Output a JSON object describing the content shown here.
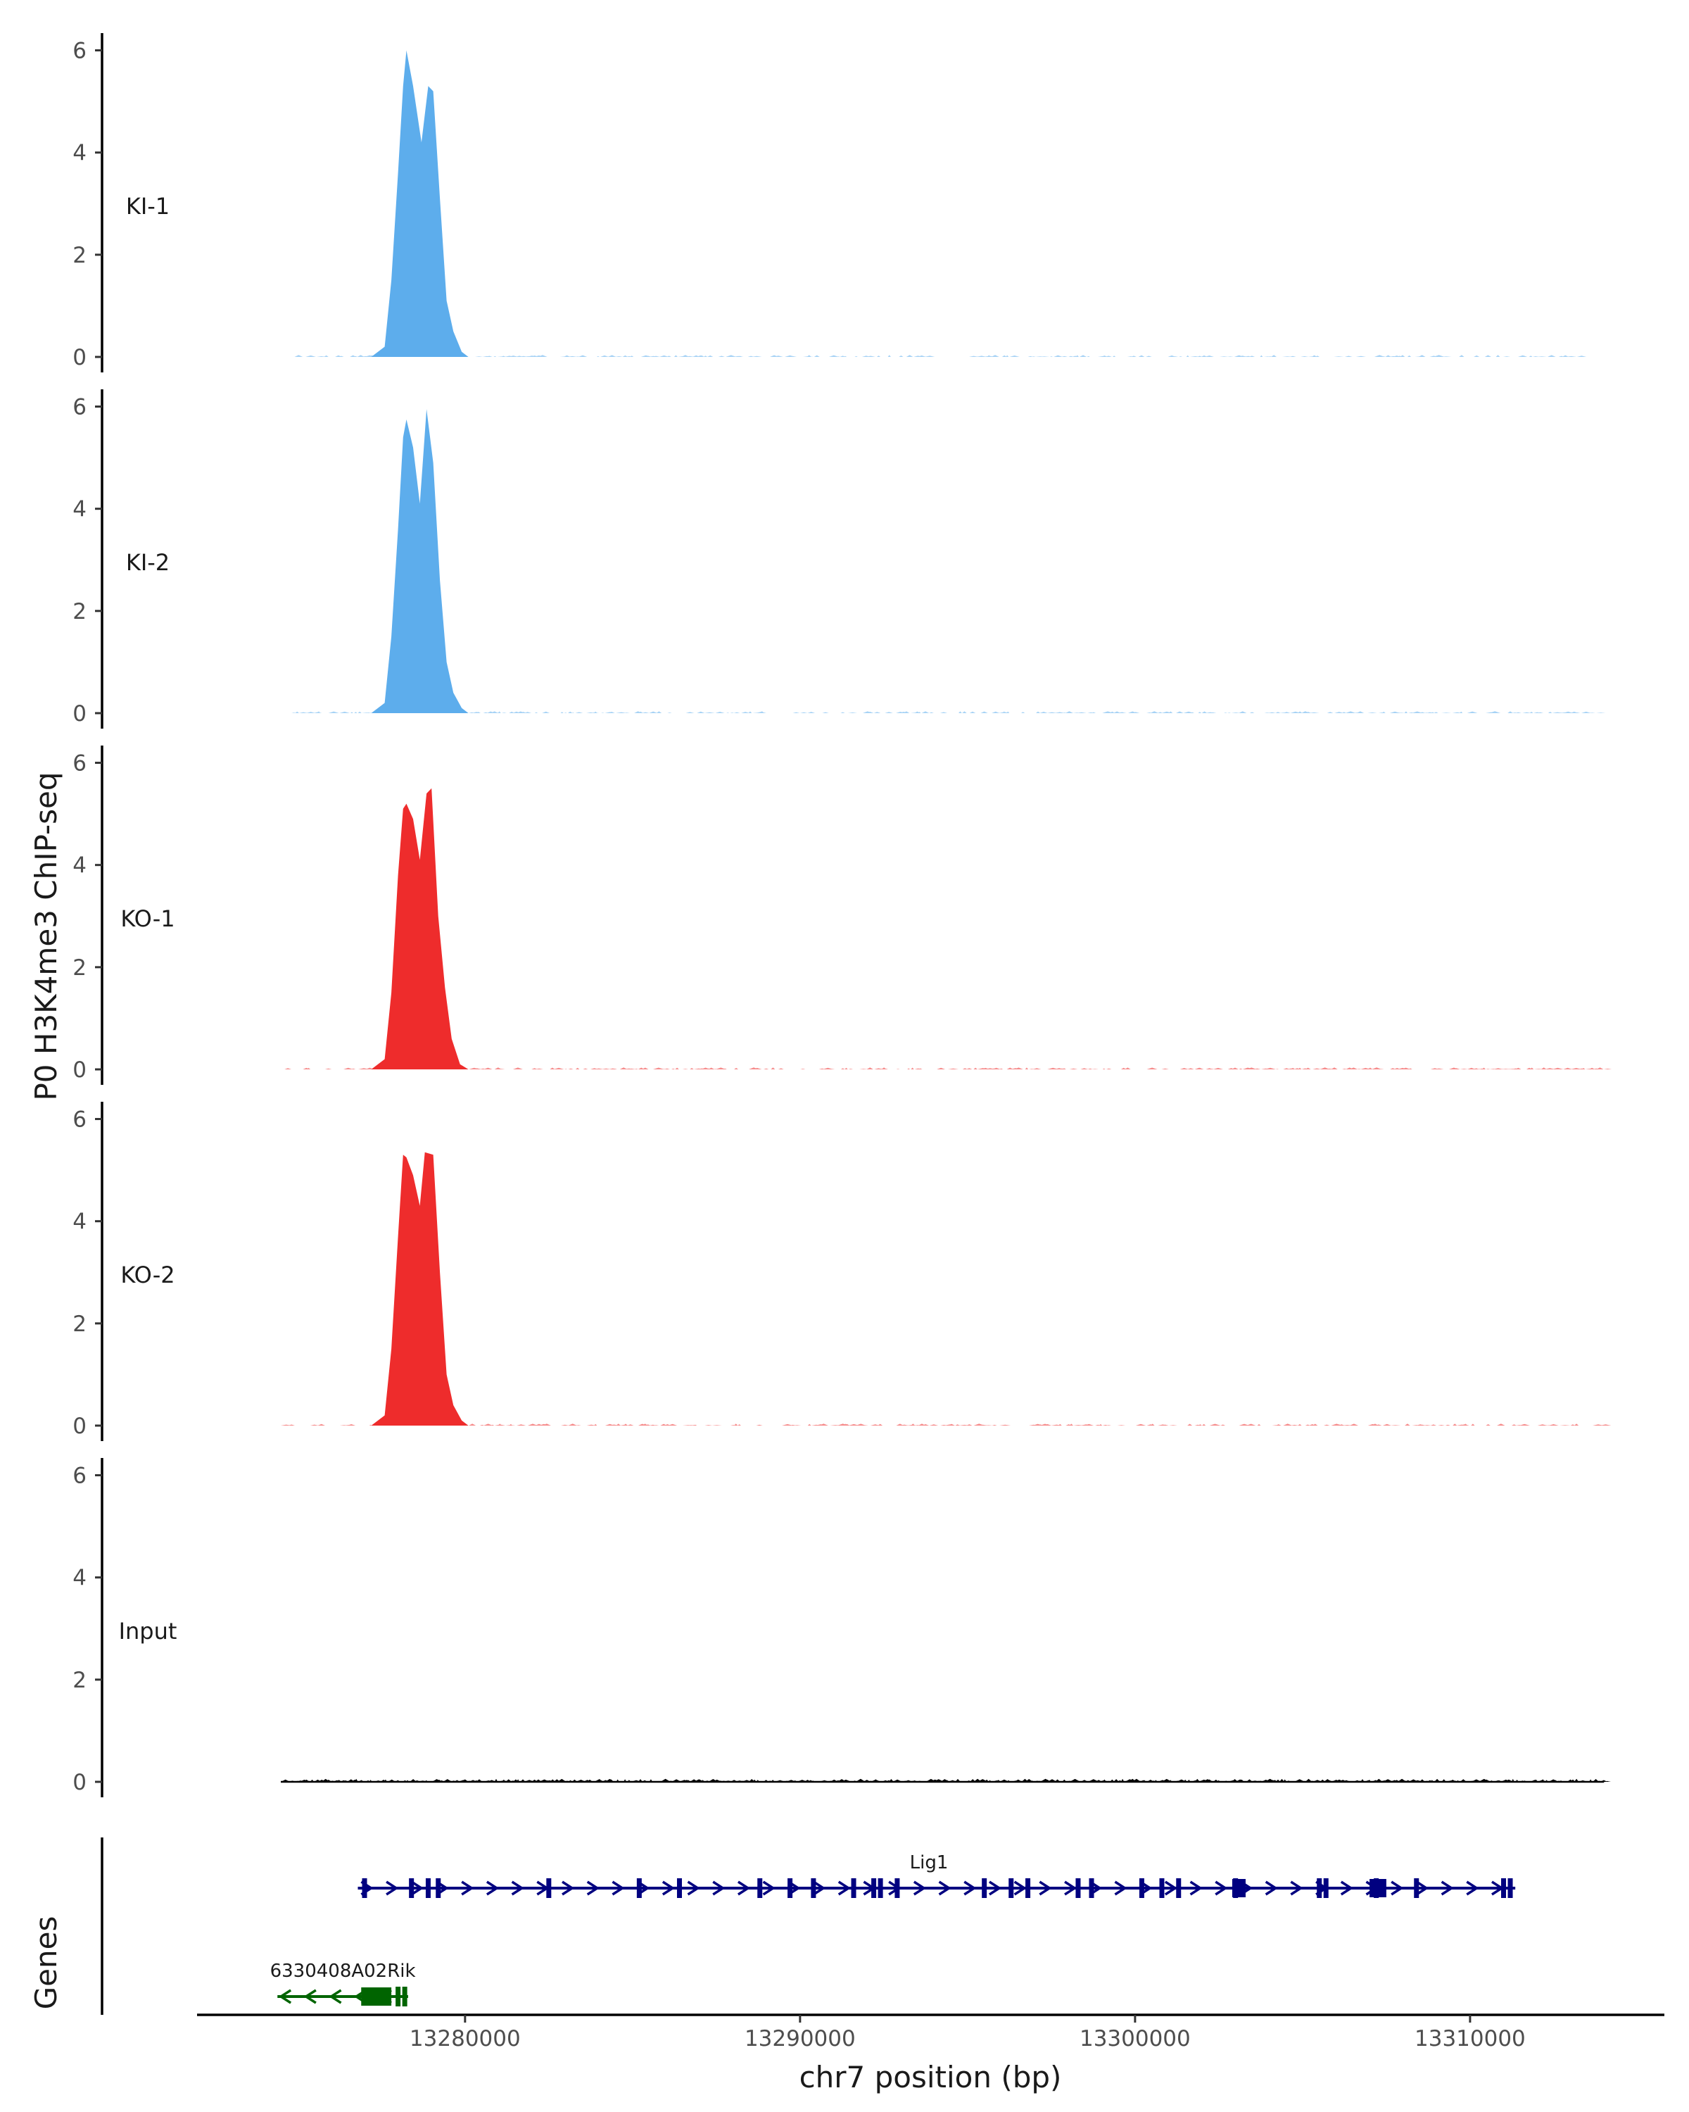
{
  "chart_data": {
    "type": "area",
    "ylabel": "P0 H3K4me3 ChIP-seq",
    "xlabel": "chr7 position (bp)",
    "ylim": [
      0,
      6.2
    ],
    "y_ticks": [
      "0",
      "2",
      "4",
      "6"
    ],
    "xlim": [
      13272000,
      13315800
    ],
    "x_ticks": [
      {
        "value": 13280000,
        "label": "13280000"
      },
      {
        "value": 13290000,
        "label": "13290000"
      },
      {
        "value": 13300000,
        "label": "13300000"
      },
      {
        "value": 13310000,
        "label": "13310000"
      }
    ],
    "tracks": [
      {
        "name": "KI-1",
        "color": "#5dadec",
        "baseline_range": [
          13274800,
          13313200
        ],
        "points": [
          [
            13277200,
            0
          ],
          [
            13277600,
            0.2
          ],
          [
            13277800,
            1.5
          ],
          [
            13278000,
            3.6
          ],
          [
            13278150,
            5.3
          ],
          [
            13278250,
            6.0
          ],
          [
            13278450,
            5.3
          ],
          [
            13278700,
            4.2
          ],
          [
            13278900,
            5.3
          ],
          [
            13279050,
            5.2
          ],
          [
            13279250,
            3.1
          ],
          [
            13279450,
            1.1
          ],
          [
            13279650,
            0.5
          ],
          [
            13279900,
            0.1
          ],
          [
            13280100,
            0
          ]
        ]
      },
      {
        "name": "KI-2",
        "color": "#5dadec",
        "baseline_range": [
          13274600,
          13314000
        ],
        "points": [
          [
            13277200,
            0
          ],
          [
            13277600,
            0.2
          ],
          [
            13277800,
            1.5
          ],
          [
            13278000,
            3.6
          ],
          [
            13278150,
            5.4
          ],
          [
            13278250,
            5.75
          ],
          [
            13278450,
            5.2
          ],
          [
            13278650,
            4.1
          ],
          [
            13278850,
            5.95
          ],
          [
            13279050,
            4.9
          ],
          [
            13279250,
            2.6
          ],
          [
            13279450,
            1.0
          ],
          [
            13279650,
            0.4
          ],
          [
            13279900,
            0.1
          ],
          [
            13280100,
            0
          ]
        ]
      },
      {
        "name": "KO-1",
        "color": "#ee2c2c",
        "baseline_range": [
          13274500,
          13314000
        ],
        "points": [
          [
            13277200,
            0
          ],
          [
            13277600,
            0.2
          ],
          [
            13277800,
            1.5
          ],
          [
            13278000,
            3.8
          ],
          [
            13278150,
            5.1
          ],
          [
            13278250,
            5.2
          ],
          [
            13278450,
            4.9
          ],
          [
            13278650,
            4.1
          ],
          [
            13278850,
            5.4
          ],
          [
            13279000,
            5.5
          ],
          [
            13279200,
            3.0
          ],
          [
            13279400,
            1.6
          ],
          [
            13279600,
            0.6
          ],
          [
            13279850,
            0.1
          ],
          [
            13280100,
            0
          ]
        ]
      },
      {
        "name": "KO-2",
        "color": "#ee2c2c",
        "baseline_range": [
          13274500,
          13314000
        ],
        "points": [
          [
            13277200,
            0
          ],
          [
            13277600,
            0.2
          ],
          [
            13277800,
            1.5
          ],
          [
            13278000,
            3.7
          ],
          [
            13278150,
            5.3
          ],
          [
            13278250,
            5.25
          ],
          [
            13278450,
            4.9
          ],
          [
            13278650,
            4.3
          ],
          [
            13278800,
            5.35
          ],
          [
            13279050,
            5.3
          ],
          [
            13279250,
            3.0
          ],
          [
            13279450,
            1.0
          ],
          [
            13279650,
            0.4
          ],
          [
            13279900,
            0.1
          ],
          [
            13280100,
            0
          ]
        ]
      },
      {
        "name": "Input",
        "color": "#000000",
        "baseline_range": [
          13274500,
          13314000
        ],
        "points": []
      }
    ],
    "genes_label": "Genes",
    "genes": [
      {
        "name": "Lig1",
        "color": "#000080",
        "start": 13276800,
        "end": 13311350,
        "strand": "+",
        "row": 0,
        "exons": [
          13277000,
          13278400,
          13278900,
          13279200,
          13282500,
          13285200,
          13286400,
          13288800,
          13289700,
          13290400,
          13291600,
          13292200,
          13292400,
          13292900,
          13295500,
          13296300,
          13296800,
          13298300,
          13298700,
          13300200,
          13300800,
          13301300,
          13303000,
          13305500,
          13305700,
          13307200,
          13308400,
          13311000,
          13311200
        ],
        "big_exons": [
          [
            13302900,
            13303300
          ],
          [
            13307000,
            13307500
          ]
        ]
      },
      {
        "name": "6330408A02Rik",
        "color": "#006400",
        "start": 13274400,
        "end": 13278300,
        "strand": "-",
        "row": 1,
        "exons": [
          13278000,
          13278200
        ],
        "big_exons": [
          [
            13276900,
            13277800
          ]
        ]
      }
    ]
  }
}
